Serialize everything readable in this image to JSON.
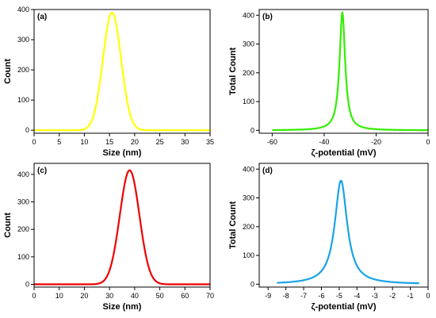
{
  "chart_data": [
    {
      "type": "line",
      "panel_label": "(a)",
      "xlabel": "Size (nm)",
      "ylabel": "Count",
      "xlim": [
        0,
        35
      ],
      "ylim": [
        -10,
        400
      ],
      "xticks": [
        0,
        5,
        10,
        15,
        20,
        25,
        30,
        35
      ],
      "yticks": [
        0,
        100,
        200,
        300,
        400
      ],
      "color": "#ffff00",
      "curve": {
        "shape": "gaussian",
        "center": 15.5,
        "peak": 390,
        "width": 1.8,
        "baseline": 0
      },
      "x_range": [
        0,
        35
      ],
      "grid": false
    },
    {
      "type": "line",
      "panel_label": "(b)",
      "xlabel": "ζ-potential (mV)",
      "ylabel": "Total Count",
      "xlim": [
        -65,
        0
      ],
      "ylim": [
        -10,
        420
      ],
      "xticks": [
        -60,
        -40,
        -20,
        0
      ],
      "yticks": [
        0,
        100,
        200,
        300,
        400
      ],
      "color": "#33ee00",
      "curve": {
        "shape": "lorentzian",
        "center": -33,
        "peak": 410,
        "width": 1.3,
        "baseline": 0
      },
      "x_range": [
        -60,
        0
      ],
      "grid": false
    },
    {
      "type": "line",
      "panel_label": "(c)",
      "xlabel": "Size (nm)",
      "ylabel": "Count",
      "xlim": [
        0,
        70
      ],
      "ylim": [
        -10,
        440
      ],
      "xticks": [
        0,
        10,
        20,
        30,
        40,
        50,
        60,
        70
      ],
      "yticks": [
        0,
        100,
        200,
        300,
        400
      ],
      "color": "#ee0000",
      "curve": {
        "shape": "gaussian",
        "center": 38,
        "peak": 415,
        "width": 3.9,
        "baseline": 0
      },
      "x_range": [
        0,
        70
      ],
      "grid": false
    },
    {
      "type": "line",
      "panel_label": "(d)",
      "xlabel": "ζ-potential (mV)",
      "ylabel": "Total Count",
      "xlim": [
        -9.5,
        0
      ],
      "ylim": [
        -10,
        420
      ],
      "xticks": [
        -9,
        -8,
        -7,
        -6,
        -5,
        -4,
        -3,
        -2,
        -1,
        0
      ],
      "yticks": [
        0,
        100,
        200,
        300,
        400
      ],
      "color": "#1aa3e8",
      "curve": {
        "shape": "lorentzian",
        "center": -4.9,
        "peak": 360,
        "width": 0.42,
        "baseline": 0
      },
      "x_range": [
        -8.5,
        -0.5
      ],
      "grid": false
    }
  ]
}
